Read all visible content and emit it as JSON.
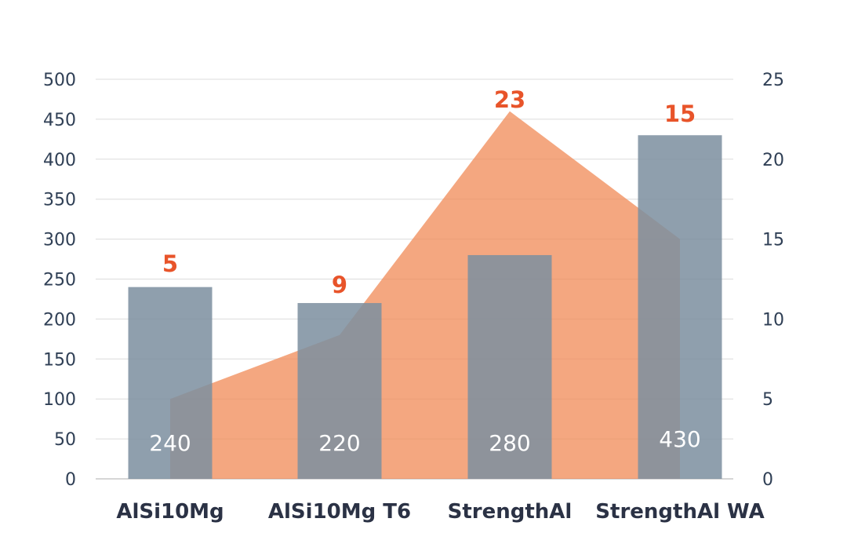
{
  "chart_data": {
    "type": "bar",
    "categories": [
      "AlSi10Mg",
      "AlSi10Mg T6",
      "StrengthAl",
      "StrengthAl WA"
    ],
    "bar_series": {
      "values": [
        240,
        220,
        280,
        430
      ],
      "axis": "left",
      "color": "#7d8fa0",
      "value_labels": [
        "240",
        "220",
        "280",
        "430"
      ]
    },
    "area_series": {
      "values": [
        5,
        9,
        23,
        15
      ],
      "axis": "right",
      "color": "#f08a55",
      "value_labels": [
        "5",
        "9",
        "23",
        "15"
      ]
    },
    "left_axis": {
      "ylim": [
        0,
        500
      ],
      "ticks": [
        "0",
        "50",
        "100",
        "150",
        "200",
        "250",
        "300",
        "350",
        "400",
        "450",
        "500"
      ]
    },
    "right_axis": {
      "ylim": [
        0,
        25
      ],
      "ticks": [
        "0",
        "5",
        "10",
        "15",
        "20",
        "25"
      ]
    },
    "grid": true,
    "title": "",
    "xlabel": "",
    "ylabel": ""
  }
}
